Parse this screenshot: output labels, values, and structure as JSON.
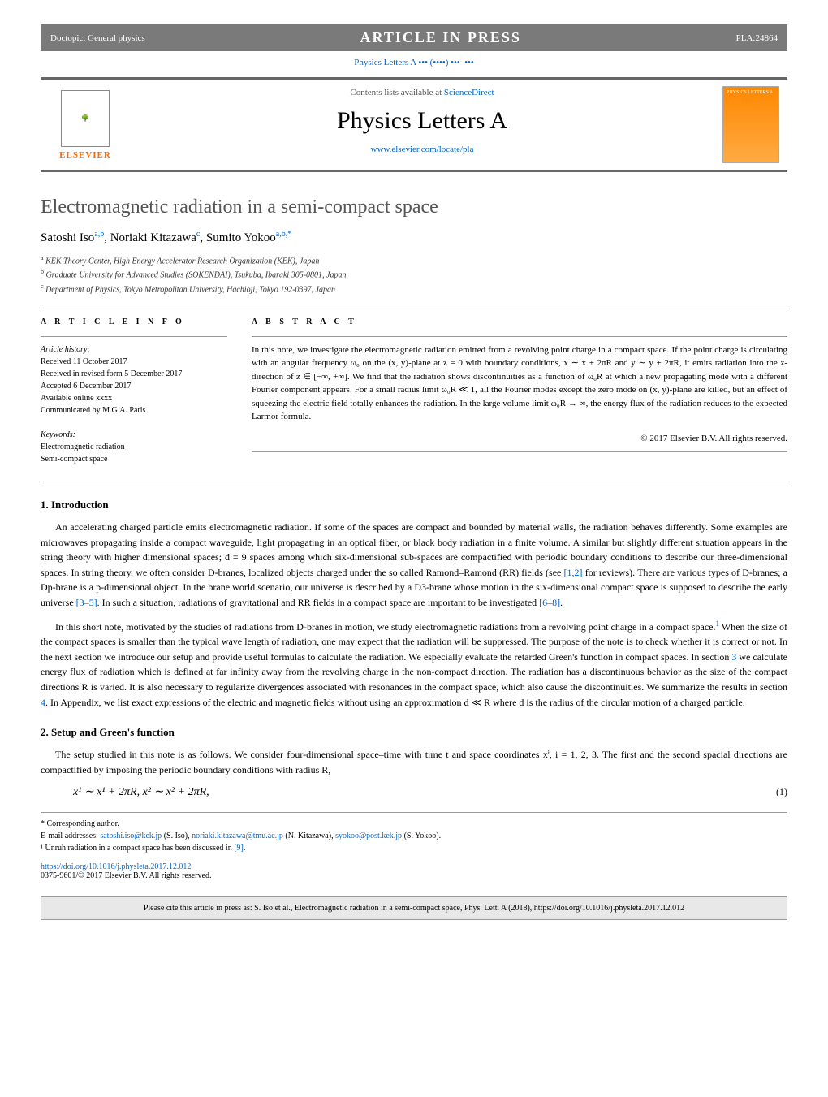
{
  "header": {
    "doctopic": "Doctopic: General physics",
    "banner": "ARTICLE IN PRESS",
    "articleCode": "PLA:24864"
  },
  "journalRef": "Physics Letters A ••• (••••) •••–•••",
  "masthead": {
    "contentsPrefix": "Contents lists available at ",
    "contentsLink": "ScienceDirect",
    "journalName": "Physics Letters A",
    "journalUrl": "www.elsevier.com/locate/pla",
    "publisherLogo": "ELSEVIER",
    "coverLabel": "PHYSICS LETTERS A"
  },
  "title": "Electromagnetic radiation in a semi-compact space",
  "authors": [
    {
      "name": "Satoshi Iso",
      "marks": "a,b"
    },
    {
      "name": "Noriaki Kitazawa",
      "marks": "c"
    },
    {
      "name": "Sumito Yokoo",
      "marks": "a,b,*"
    }
  ],
  "affiliations": [
    {
      "mark": "a",
      "text": "KEK Theory Center, High Energy Accelerator Research Organization (KEK), Japan"
    },
    {
      "mark": "b",
      "text": "Graduate University for Advanced Studies (SOKENDAI), Tsukuba, Ibaraki 305-0801, Japan"
    },
    {
      "mark": "c",
      "text": "Department of Physics, Tokyo Metropolitan University, Hachioji, Tokyo 192-0397, Japan"
    }
  ],
  "articleInfo": {
    "heading": "A R T I C L E   I N F O",
    "historyLabel": "Article history:",
    "history": [
      "Received 11 October 2017",
      "Received in revised form 5 December 2017",
      "Accepted 6 December 2017",
      "Available online xxxx",
      "Communicated by M.G.A. Paris"
    ],
    "keywordsLabel": "Keywords:",
    "keywords": [
      "Electromagnetic radiation",
      "Semi-compact space"
    ]
  },
  "abstract": {
    "heading": "A B S T R A C T",
    "text": "In this note, we investigate the electromagnetic radiation emitted from a revolving point charge in a compact space. If the point charge is circulating with an angular frequency ω₀ on the (x, y)-plane at z = 0 with boundary conditions, x ∼ x + 2πR and y ∼ y + 2πR, it emits radiation into the z-direction of z ∈ [−∞, +∞]. We find that the radiation shows discontinuities as a function of ω₀R at which a new propagating mode with a different Fourier component appears. For a small radius limit ω₀R ≪ 1, all the Fourier modes except the zero mode on (x, y)-plane are killed, but an effect of squeezing the electric field totally enhances the radiation. In the large volume limit ω₀R → ∞, the energy flux of the radiation reduces to the expected Larmor formula.",
    "copyright": "© 2017 Elsevier B.V. All rights reserved."
  },
  "sections": {
    "intro": {
      "heading": "1. Introduction",
      "para1": "An accelerating charged particle emits electromagnetic radiation. If some of the spaces are compact and bounded by material walls, the radiation behaves differently. Some examples are microwaves propagating inside a compact waveguide, light propagating in an optical fiber, or black body radiation in a finite volume. A similar but slightly different situation appears in the string theory with higher dimensional spaces; d = 9 spaces among which six-dimensional sub-spaces are compactified with periodic boundary conditions to describe our three-dimensional spaces. In string theory, we often consider D-branes, localized objects charged under the so called Ramond–Ramond (RR) fields (see ",
      "ref1": "[1,2]",
      "para1b": " for reviews). There are various types of D-branes; a Dp-brane is a p-dimensional object. In the brane world scenario, our universe is described by a D3-brane whose motion in the six-dimensional compact space is supposed to describe the early universe ",
      "ref2": "[3–5]",
      "para1c": ". In such a situation, radiations of gravitational and RR fields in a compact space are important to be investigated ",
      "ref3": "[6–8]",
      "para1d": ".",
      "para2a": "In this short note, motivated by the studies of radiations from D-branes in motion, we study electromagnetic radiations from a revolving point charge in a compact space.",
      "fn1": "1",
      "para2b": " When the size of the compact spaces is smaller than the typical wave length of radiation, one may expect that the radiation will be suppressed. The purpose of the note is to check whether it is correct or not. In the next section we introduce our setup and provide useful formulas to calculate the radiation. We especially evaluate the retarded Green's function in compact spaces. In section ",
      "secref3": "3",
      "para2c": " we calculate energy flux of radiation which is defined at far infinity away from the revolving charge in the non-compact direction. The radiation has a discontinuous behavior as the size of the compact directions R is varied. It is also necessary to regularize divergences associated with resonances in the compact space, which also cause the discontinuities. We summarize the results in section ",
      "secref4": "4",
      "para2d": ". In Appendix, we list exact expressions of the electric and magnetic fields without using an approximation d ≪ R where d is the radius of the circular motion of a charged particle."
    },
    "setup": {
      "heading": "2. Setup and Green's function",
      "para1": "The setup studied in this note is as follows. We consider four-dimensional space–time with time t and space coordinates xⁱ, i = 1, 2, 3. The first and the second spacial directions are compactified by imposing the periodic boundary conditions with radius R,",
      "eq1": "x¹ ∼ x¹ + 2πR,      x² ∼ x² + 2πR,",
      "eq1num": "(1)"
    }
  },
  "footnotes": {
    "corr": "* Corresponding author.",
    "emailsLabel": "E-mail addresses: ",
    "emails": [
      {
        "addr": "satoshi.iso@kek.jp",
        "who": "(S. Iso)"
      },
      {
        "addr": "noriaki.kitazawa@tmu.ac.jp",
        "who": "(N. Kitazawa)"
      },
      {
        "addr": "syokoo@post.kek.jp",
        "who": "(S. Yokoo)"
      }
    ],
    "fn1": "¹ Unruh radiation in a compact space has been discussed in ",
    "fn1ref": "[9]",
    "fn1end": "."
  },
  "doi": {
    "url": "https://doi.org/10.1016/j.physleta.2017.12.012",
    "copyright": "0375-9601/© 2017 Elsevier B.V. All rights reserved."
  },
  "citeBox": "Please cite this article in press as: S. Iso et al., Electromagnetic radiation in a semi-compact space, Phys. Lett. A (2018), https://doi.org/10.1016/j.physleta.2017.12.012",
  "colors": {
    "link": "#0066cc",
    "headerBg": "#7a7a7a",
    "elsevierOrange": "#ff6600",
    "titleGray": "#555555"
  }
}
